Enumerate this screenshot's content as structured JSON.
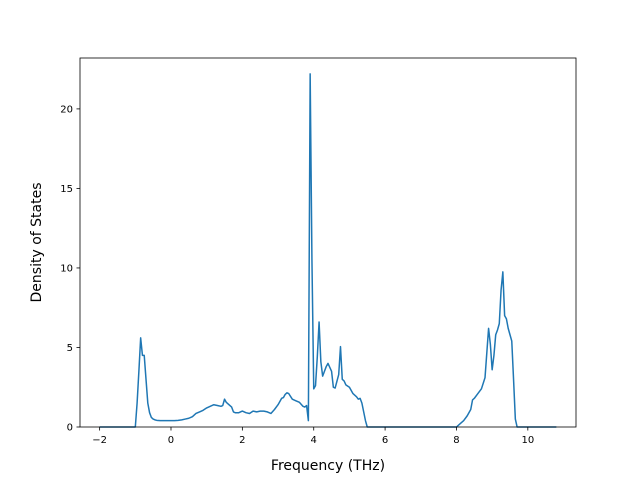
{
  "chart_data": {
    "type": "line",
    "title": "",
    "xlabel": "Frequency (THz)",
    "ylabel": "Density of States",
    "xlim": [
      -2.55,
      11.35
    ],
    "ylim": [
      0,
      23.2
    ],
    "xticks": [
      -2,
      0,
      2,
      4,
      6,
      8,
      10
    ],
    "yticks": [
      0,
      5,
      10,
      15,
      20
    ],
    "grid": false,
    "legend": "none",
    "colors": {
      "line": "#1f77b4"
    },
    "series": [
      {
        "x": [
          -2.0,
          -1.0,
          -0.95,
          -0.9,
          -0.85,
          -0.8,
          -0.75,
          -0.7,
          -0.65,
          -0.6,
          -0.55,
          -0.5,
          -0.45,
          -0.4,
          -0.3,
          -0.2,
          -0.1,
          0.0,
          0.1,
          0.2,
          0.3,
          0.4,
          0.5,
          0.6,
          0.7,
          0.8,
          0.9,
          1.0,
          1.1,
          1.2,
          1.3,
          1.4,
          1.45,
          1.5,
          1.55,
          1.6,
          1.7,
          1.75,
          1.8,
          1.9,
          2.0,
          2.1,
          2.2,
          2.3,
          2.4,
          2.5,
          2.6,
          2.7,
          2.8,
          2.9,
          3.0,
          3.1,
          3.15,
          3.2,
          3.25,
          3.3,
          3.4,
          3.5,
          3.6,
          3.7,
          3.75,
          3.8,
          3.85,
          3.9,
          3.95,
          4.0,
          4.05,
          4.1,
          4.15,
          4.2,
          4.25,
          4.3,
          4.35,
          4.4,
          4.5,
          4.55,
          4.6,
          4.7,
          4.75,
          4.8,
          4.85,
          4.9,
          5.0,
          5.1,
          5.2,
          5.25,
          5.3,
          5.35,
          5.45,
          5.5,
          8.0,
          8.1,
          8.2,
          8.3,
          8.4,
          8.45,
          8.5,
          8.6,
          8.7,
          8.8,
          8.9,
          8.95,
          9.0,
          9.05,
          9.1,
          9.15,
          9.2,
          9.25,
          9.3,
          9.35,
          9.4,
          9.45,
          9.5,
          9.55,
          9.6,
          9.65,
          9.7,
          9.75,
          10.8
        ],
        "y": [
          0,
          0,
          1.5,
          3.5,
          5.6,
          4.5,
          4.5,
          3.0,
          1.5,
          0.9,
          0.6,
          0.5,
          0.45,
          0.42,
          0.4,
          0.4,
          0.4,
          0.4,
          0.4,
          0.42,
          0.45,
          0.5,
          0.55,
          0.65,
          0.85,
          0.95,
          1.05,
          1.2,
          1.3,
          1.4,
          1.35,
          1.3,
          1.35,
          1.75,
          1.55,
          1.45,
          1.25,
          0.95,
          0.9,
          0.9,
          1.0,
          0.9,
          0.85,
          1.0,
          0.95,
          1.0,
          1.0,
          0.95,
          0.85,
          1.1,
          1.4,
          1.8,
          1.85,
          2.05,
          2.15,
          2.1,
          1.75,
          1.65,
          1.55,
          1.3,
          1.25,
          1.35,
          0.4,
          22.2,
          10.5,
          2.4,
          2.6,
          4.4,
          6.6,
          4.1,
          3.2,
          3.5,
          3.8,
          4.0,
          3.5,
          2.5,
          2.45,
          3.3,
          5.05,
          3.0,
          2.9,
          2.65,
          2.5,
          2.1,
          1.9,
          1.75,
          1.8,
          1.5,
          0.4,
          0,
          0,
          0.2,
          0.4,
          0.7,
          1.1,
          1.7,
          1.8,
          2.1,
          2.4,
          3.1,
          6.2,
          5.2,
          3.6,
          4.5,
          5.8,
          6.1,
          6.5,
          8.6,
          9.75,
          7.0,
          6.8,
          6.2,
          5.8,
          5.4,
          3.0,
          0.5,
          0,
          0,
          0
        ]
      }
    ]
  }
}
